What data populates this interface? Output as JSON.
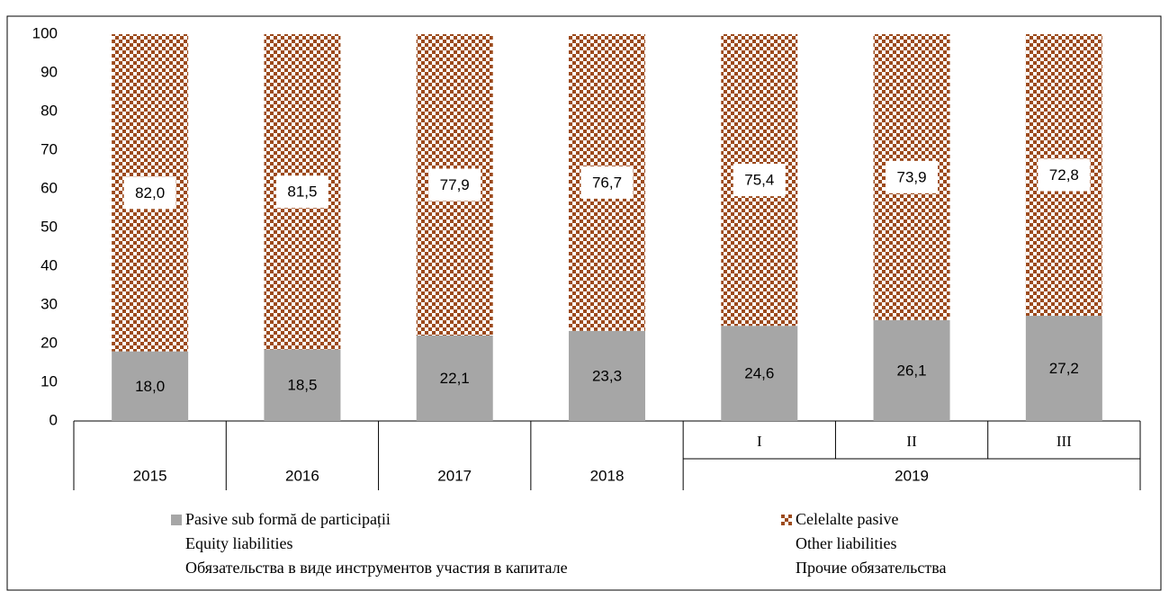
{
  "chart_data": {
    "type": "stacked_bar",
    "categories": [
      "2015",
      "2016",
      "2017",
      "2018",
      "I",
      "II",
      "III"
    ],
    "groups": [
      {
        "label": "2019",
        "size": 3
      }
    ],
    "series": [
      {
        "name": "Pasive sub formă de participații",
        "name_en": "Equity liabilities",
        "name_ru": "Обязательства в виде инструментов участия в капитале",
        "color": "#a6a6a6",
        "pattern": "solid",
        "values": [
          18.0,
          18.5,
          22.1,
          23.3,
          24.6,
          26.1,
          27.2
        ],
        "value_labels": [
          "18,0",
          "18,5",
          "22,1",
          "23,3",
          "24,6",
          "26,1",
          "27,2"
        ]
      },
      {
        "name": "Celelalte pasive",
        "name_en": "Other liabilities",
        "name_ru": "Прочие обязательства",
        "color": "#9c4a1c",
        "pattern": "checker",
        "values": [
          82.0,
          81.5,
          77.9,
          76.7,
          75.4,
          73.9,
          72.8
        ],
        "value_labels": [
          "82,0",
          "81,5",
          "77,9",
          "76,7",
          "75,4",
          "73,9",
          "72,8"
        ]
      }
    ],
    "ylim": [
      0,
      100
    ],
    "yticks": [
      0,
      10,
      20,
      30,
      40,
      50,
      60,
      70,
      80,
      90,
      100
    ],
    "grid": false,
    "legend": "bottom"
  }
}
